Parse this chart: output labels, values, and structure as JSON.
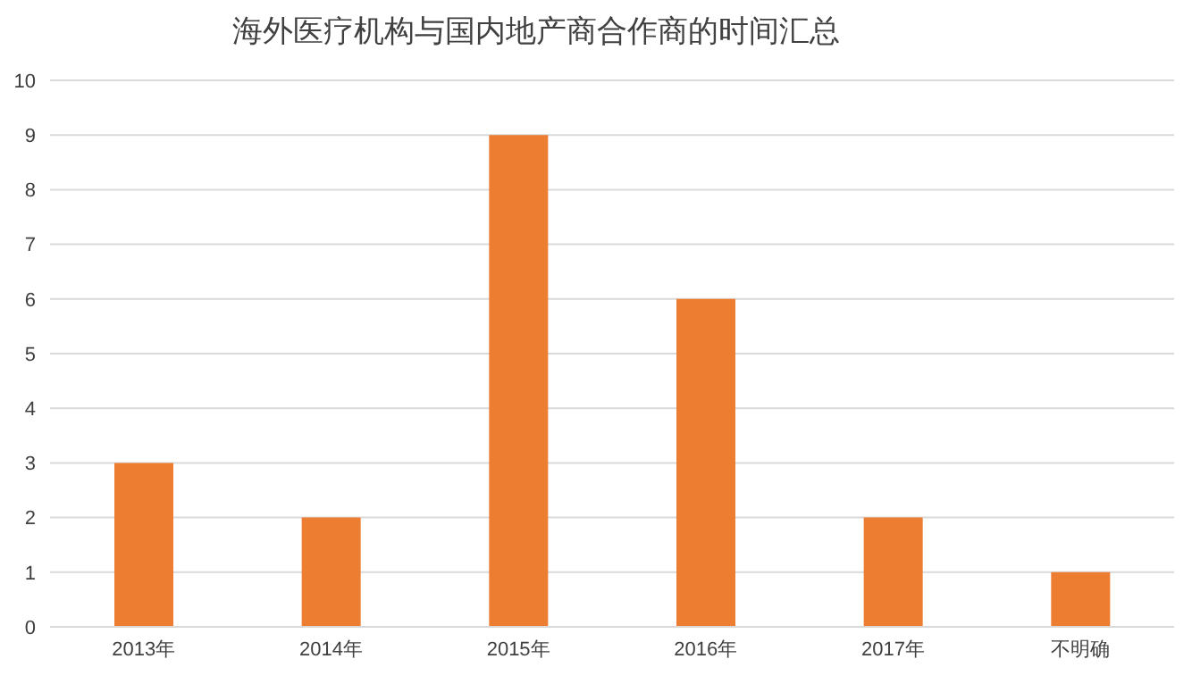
{
  "chart_data": {
    "type": "bar",
    "title": "海外医疗机构与国内地产商合作商的时间汇总",
    "categories": [
      "2013年",
      "2014年",
      "2015年",
      "2016年",
      "2017年",
      "不明确"
    ],
    "values": [
      3,
      2,
      9,
      6,
      2,
      1
    ],
    "color": "#ed7d31",
    "ylim": [
      0,
      10
    ],
    "yticks": [
      0,
      1,
      2,
      3,
      4,
      5,
      6,
      7,
      8,
      9,
      10
    ],
    "grid": "y"
  }
}
